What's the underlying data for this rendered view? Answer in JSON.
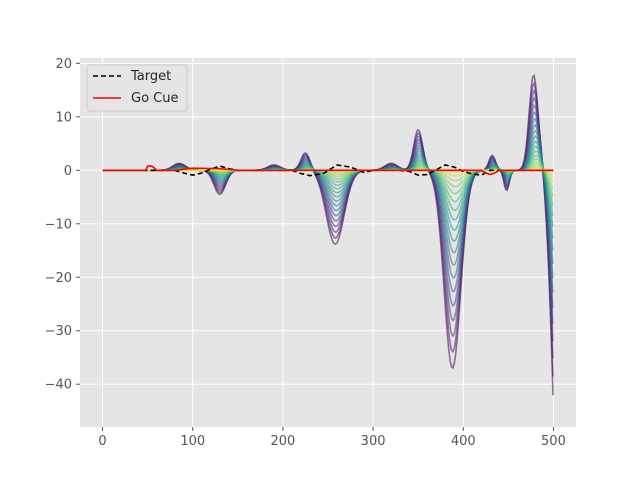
{
  "chart_data": {
    "type": "line",
    "title": "",
    "xlabel": "",
    "ylabel": "",
    "xlim": [
      -25,
      525
    ],
    "ylim": [
      -48,
      21
    ],
    "x_ticks": [
      0,
      100,
      200,
      300,
      400,
      500
    ],
    "y_ticks": [
      -40,
      -30,
      -20,
      -10,
      0,
      10,
      20
    ],
    "grid": true,
    "legend": {
      "placement": "top-left",
      "entries": [
        {
          "label": "Target",
          "color": "#000000",
          "style": "dashed"
        },
        {
          "label": "Go Cue",
          "color": "#ff0000",
          "style": "solid"
        }
      ]
    },
    "target": {
      "x": [
        0,
        50,
        70,
        80,
        90,
        100,
        110,
        120,
        130,
        140,
        150,
        175,
        200,
        210,
        220,
        230,
        245,
        260,
        275,
        290,
        300,
        320,
        330,
        340,
        350,
        360,
        370,
        380,
        390,
        400,
        410,
        420,
        430,
        500
      ],
      "y": [
        0,
        0,
        0,
        0,
        -0.5,
        -0.9,
        -0.5,
        0.2,
        0.8,
        0.3,
        0,
        0,
        0,
        0,
        -0.6,
        -1,
        -0.6,
        1,
        0.6,
        -0.4,
        0,
        0,
        0,
        -0.2,
        -0.9,
        -0.8,
        0.1,
        1,
        0.6,
        -0.2,
        -0.7,
        -0.9,
        0,
        0
      ]
    },
    "go_cue": {
      "x": [
        0,
        48,
        50,
        55,
        60,
        70,
        80,
        90,
        100,
        130,
        150,
        175,
        200,
        240,
        260,
        290,
        330,
        360,
        400,
        420,
        425,
        430,
        435,
        440,
        500
      ],
      "y": [
        0,
        0,
        0.8,
        0.8,
        0,
        0,
        0,
        0.2,
        0.4,
        0.3,
        0,
        0,
        0,
        0,
        0,
        0,
        0,
        0,
        0,
        0,
        -0.5,
        -0.8,
        -0.5,
        0,
        0
      ]
    },
    "trial_series": {
      "count": 20,
      "color_map": "viridis (first to last trial)",
      "first_trial_extremes": [
        {
          "x": 130,
          "y": -4.5
        },
        {
          "x": 225,
          "y": 3.3
        },
        {
          "x": 258,
          "y": -13.8
        },
        {
          "x": 350,
          "y": 7.6
        },
        {
          "x": 388,
          "y": -37
        },
        {
          "x": 478,
          "y": 17.8
        },
        {
          "x": 500,
          "y": -45
        }
      ],
      "last_trial_value": 0
    }
  }
}
